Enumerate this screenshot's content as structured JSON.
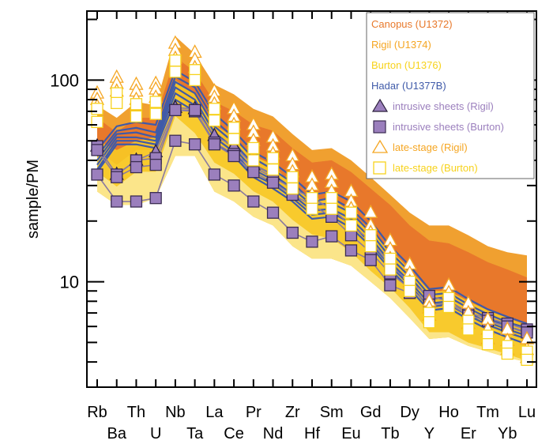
{
  "chart_data": {
    "type": "line",
    "ylabel": "sample/PM",
    "yscale": "log",
    "ylim": [
      3,
      220
    ],
    "ytick_labels": [
      {
        "value": 10,
        "label": "10"
      },
      {
        "value": 100,
        "label": "100"
      }
    ],
    "xtick_rows": {
      "top": [
        "Rb",
        "Th",
        "Nb",
        "La",
        "Pr",
        "Zr",
        "Sm",
        "Gd",
        "Dy",
        "Ho",
        "Tm",
        "Lu"
      ],
      "bottom": [
        "Ba",
        "U",
        "Ta",
        "Ce",
        "Nd",
        "Hf",
        "Eu",
        "Tb",
        "Y",
        "Er",
        "Yb"
      ]
    },
    "categories": [
      "Rb",
      "Ba",
      "Th",
      "U",
      "Nb",
      "Ta",
      "La",
      "Ce",
      "Pr",
      "Nd",
      "Zr",
      "Hf",
      "Sm",
      "Eu",
      "Gd",
      "Tb",
      "Dy",
      "Y",
      "Ho",
      "Er",
      "Tm",
      "Yb",
      "Lu"
    ],
    "legend_position": "top-right",
    "legend": [
      {
        "label": "Canopus (U1372)",
        "color": "#e8792b",
        "marker": "none"
      },
      {
        "label": "Rigil (U1374)",
        "color": "#f5a623",
        "marker": "none"
      },
      {
        "label": "Burton (U1376)",
        "color": "#f7d21c",
        "marker": "none"
      },
      {
        "label": "Hadar (U1377B)",
        "color": "#3f5aa9",
        "marker": "line"
      },
      {
        "label": "intrusive sheets (Rigil)",
        "color": "#9b7fbd",
        "marker": "triangle-filled"
      },
      {
        "label": "intrusive sheets (Burton)",
        "color": "#9b7fbd",
        "marker": "square-filled"
      },
      {
        "label": "late-stage (Rigil)",
        "color": "#f5a623",
        "marker": "triangle-open"
      },
      {
        "label": "late-stage (Burton)",
        "color": "#f7d21c",
        "marker": "square-open"
      }
    ],
    "fields": [
      {
        "name": "Canopus (U1372)",
        "color": "#f0a030",
        "upper": [
          75,
          65,
          78,
          75,
          165,
          135,
          95,
          85,
          72,
          66,
          54,
          45,
          46,
          40,
          33,
          27,
          22,
          19,
          19,
          17,
          15,
          14,
          13.5
        ],
        "lower": [
          55,
          45,
          55,
          55,
          100,
          85,
          60,
          52,
          42,
          38,
          30,
          25,
          25,
          22,
          17,
          14,
          11,
          8.5,
          8.5,
          7.5,
          7.0,
          6.5,
          6.2
        ]
      },
      {
        "name": "Rigil (U1374)",
        "color": "#e8792b",
        "upper": [
          65,
          55,
          65,
          65,
          130,
          110,
          78,
          70,
          60,
          56,
          46,
          39,
          40,
          35,
          29,
          24,
          19,
          16,
          15.5,
          14,
          12.5,
          11.5,
          10.5
        ],
        "lower": [
          45,
          38,
          45,
          45,
          85,
          70,
          50,
          44,
          36,
          32,
          26,
          22,
          21,
          18,
          14.5,
          12,
          9.5,
          7.2,
          7.2,
          6.4,
          6.0,
          5.6,
          5.2
        ]
      },
      {
        "name": "Burton (U1376)",
        "color": "#f7c51c",
        "upper": [
          50,
          45,
          50,
          52,
          100,
          85,
          60,
          52,
          42,
          38,
          30,
          25,
          26,
          22,
          18,
          14.5,
          11.5,
          9,
          9,
          8,
          7.2,
          6.6,
          6.1
        ]
      },
      {
        "name": "Burton light",
        "color": "#fbe58a",
        "lower": [
          28,
          24,
          24,
          26,
          42,
          42,
          28,
          25,
          21,
          19,
          15,
          13,
          13,
          12,
          10,
          8.3,
          6.6,
          5.2,
          5.3,
          4.8,
          4.5,
          4.2,
          4.0
        ]
      }
    ],
    "series": [
      {
        "name": "Hadar (U1377B)",
        "color": "#3f5aa9",
        "style": "line",
        "profiles": [
          [
            45,
            59,
            62,
            60,
            112,
            98,
            68,
            56,
            44,
            39,
            33,
            27,
            28,
            25,
            20,
            15,
            12,
            9.2,
            9.4,
            8.2,
            7.3,
            6.7,
            6.2
          ],
          [
            42,
            56,
            58,
            55,
            104,
            92,
            63,
            52,
            41,
            36,
            31,
            25,
            26,
            23,
            18.5,
            14,
            11.2,
            8.6,
            8.8,
            7.7,
            6.9,
            6.3,
            5.9
          ],
          [
            40,
            54,
            55,
            52,
            98,
            86,
            59,
            49,
            38,
            34,
            29,
            24,
            24.5,
            22,
            17.5,
            13.2,
            10.6,
            8.2,
            8.4,
            7.4,
            6.6,
            6.0,
            5.6
          ],
          [
            38,
            52,
            52,
            50,
            92,
            80,
            55,
            46,
            36,
            32,
            27,
            22.5,
            23,
            20.5,
            16.5,
            12.5,
            10.0,
            7.8,
            8.0,
            7.0,
            6.3,
            5.8,
            5.4
          ],
          [
            36,
            50,
            50,
            48,
            86,
            75,
            52,
            44,
            34,
            30.5,
            26,
            21.5,
            22,
            19.5,
            15.5,
            12.0,
            9.6,
            7.5,
            7.7,
            6.8,
            6.1,
            5.6,
            5.2
          ],
          [
            35,
            48,
            48,
            46,
            80,
            70,
            49,
            42,
            33,
            29,
            25,
            20.5,
            21,
            18.5,
            15.0,
            11.5,
            9.2,
            7.2,
            7.4,
            6.5,
            5.8,
            5.3,
            4.9
          ]
        ]
      },
      {
        "name": "intrusive sheets (Rigil)",
        "color": "#9b7fbd",
        "style": "marker-triangle",
        "line_color": "#8a7aa0",
        "profiles": [
          [
            47,
            34,
            40,
            44,
            73,
            72,
            53,
            47,
            38,
            34
          ]
        ]
      },
      {
        "name": "intrusive sheets (Burton)",
        "color": "#9b7fbd",
        "style": "marker-square",
        "line_color": "#8a7aa0",
        "profiles": [
          [
            47,
            34,
            40,
            41,
            71,
            70,
            49,
            43,
            37,
            33,
            29,
            26,
            23,
            19,
            16,
            12,
            10,
            8.5,
            8.0,
            7.0,
            6.6,
            6.2,
            5.8
          ],
          [
            45,
            33,
            37,
            38,
            71,
            71,
            48,
            42,
            35,
            31,
            27,
            24,
            21,
            17,
            14,
            11,
            9.3,
            7.7,
            7.8,
            6.8,
            6.4,
            6.0,
            5.6
          ],
          [
            34,
            25,
            25,
            26,
            50,
            48,
            34,
            30,
            25,
            22,
            17.5,
            15.8,
            16.8,
            14.3,
            12.8,
            9.6,
            8.8
          ]
        ]
      },
      {
        "name": "late-stage (Rigil)",
        "color": "#f5a623",
        "style": "marker-triangle-open",
        "profiles": [
          [
            86,
            103,
            95,
            96,
            152,
            137,
            88,
            72,
            60,
            52,
            42,
            33,
            34,
            28,
            22,
            16,
            12.2,
            8,
            9.6,
            7.8,
            6.5,
            5.8,
            5.2
          ],
          [
            80,
            96,
            88,
            90,
            140,
            126,
            82,
            66,
            55,
            47,
            38,
            30,
            31,
            25,
            19,
            14.5,
            11,
            7.4,
            8.8,
            7.0,
            5.8,
            5.1,
            4.6
          ],
          [
            74,
            88,
            80,
            82,
            128,
            115,
            76,
            60,
            50,
            43,
            35,
            27,
            28,
            23,
            17.5,
            13,
            10,
            6.8,
            8.0,
            6.2,
            5.2,
            4.6,
            4.2
          ]
        ]
      },
      {
        "name": "late-stage (Burton)",
        "color": "#f7d21c",
        "style": "marker-square-open",
        "profiles": [
          [
            72,
            86,
            76,
            78,
            125,
            112,
            72,
            58,
            46,
            41,
            33,
            26,
            26,
            22,
            17,
            13,
            10,
            7,
            8.3,
            6.4,
            5.4,
            4.8,
            4.5
          ],
          [
            62,
            77,
            66,
            68,
            110,
            100,
            63,
            51,
            40,
            36,
            29,
            23,
            23,
            19,
            15,
            11.5,
            9,
            6.3,
            7.5,
            5.8,
            4.9,
            4.4,
            4.1
          ]
        ]
      }
    ]
  }
}
